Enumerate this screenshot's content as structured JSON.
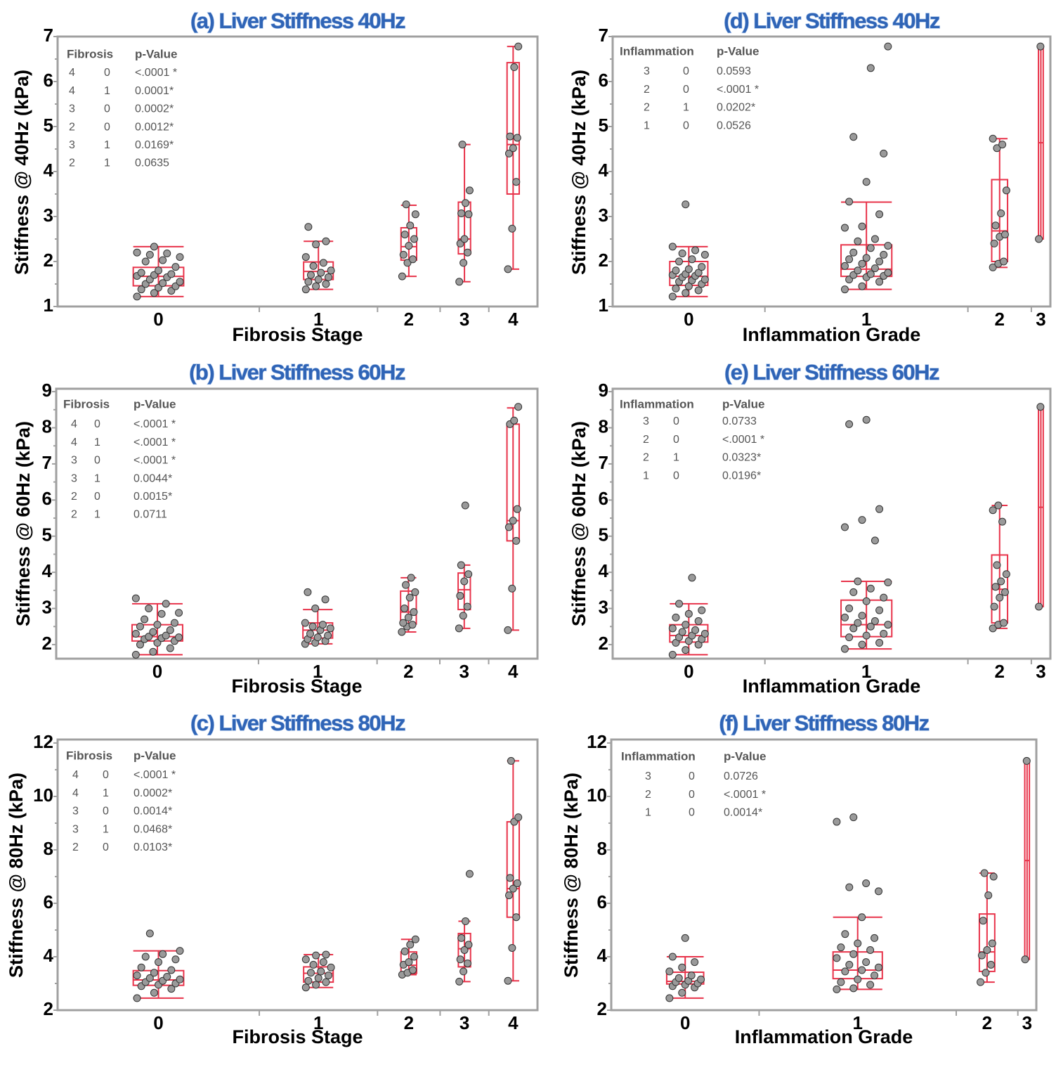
{
  "colors": {
    "box": "#e8334a",
    "point_fill": "#9a9a9a",
    "point_stroke": "#333333",
    "frame": "#a0a0a0",
    "title": "#2f64b6"
  },
  "chart_data": [
    {
      "type": "box",
      "title": "(a) Liver Stiffness 40Hz",
      "xlabel": "Fibrosis Stage",
      "ylabel": "Stiffness @ 40Hz (kPa)",
      "ylim": [
        1,
        7
      ],
      "yticks": [
        1,
        2,
        3,
        4,
        5,
        6,
        7
      ],
      "yminor": [
        1.5,
        2.5,
        3.5,
        4.5,
        5.5,
        6.5
      ],
      "table": {
        "headers": [
          "Fibrosis",
          "p-Value"
        ],
        "rows": [
          [
            "4",
            "0",
            "<.0001 *"
          ],
          [
            "4",
            "1",
            "0.0001*"
          ],
          [
            "3",
            "0",
            "0.0002*"
          ],
          [
            "2",
            "0",
            "0.0012*"
          ],
          [
            "3",
            "1",
            "0.0169*"
          ],
          [
            "2",
            "1",
            "0.0635"
          ]
        ]
      },
      "categories": [
        {
          "label": "0",
          "n": 29,
          "stats": [
            1.22,
            1.46,
            1.67,
            1.87,
            2.33
          ],
          "points": [
            1.22,
            1.3,
            1.35,
            1.38,
            1.42,
            1.45,
            1.5,
            1.52,
            1.55,
            1.6,
            1.65,
            1.68,
            1.7,
            1.72,
            1.75,
            1.8,
            1.88,
            2.0,
            2.03,
            2.1,
            2.15,
            2.18,
            2.2,
            2.33
          ]
        },
        {
          "label": "1",
          "n": 17,
          "stats": [
            1.38,
            1.6,
            1.78,
            1.99,
            2.45
          ],
          "points": [
            1.38,
            1.45,
            1.5,
            1.55,
            1.6,
            1.65,
            1.7,
            1.75,
            1.8,
            1.9,
            1.97,
            2.1,
            2.38,
            2.45,
            2.77
          ]
        },
        {
          "label": "2",
          "n": 9,
          "stats": [
            1.67,
            2.03,
            2.33,
            2.75,
            3.25
          ],
          "points": [
            1.67,
            1.97,
            2.05,
            2.15,
            2.35,
            2.5,
            2.6,
            2.8,
            3.05,
            3.27
          ]
        },
        {
          "label": "3",
          "n": 7,
          "stats": [
            1.55,
            2.17,
            2.5,
            3.32,
            4.6
          ],
          "points": [
            1.55,
            1.97,
            2.2,
            2.4,
            2.5,
            3.05,
            3.07,
            3.3,
            3.58,
            4.6
          ]
        },
        {
          "label": "4",
          "n": 7,
          "stats": [
            1.83,
            3.5,
            4.6,
            6.42,
            6.78
          ],
          "points": [
            1.83,
            2.73,
            3.77,
            4.4,
            4.52,
            4.75,
            4.78,
            6.32,
            6.78
          ]
        }
      ]
    },
    {
      "type": "box",
      "title": "(d) Liver Stiffness 40Hz",
      "xlabel": "Inflammation Grade",
      "ylabel": "Stiffness @ 40Hz (kPa)",
      "ylim": [
        1,
        7
      ],
      "yticks": [
        1,
        2,
        3,
        4,
        5,
        6,
        7
      ],
      "yminor": [
        1.5,
        2.5,
        3.5,
        4.5,
        5.5,
        6.5
      ],
      "table": {
        "headers": [
          "Inflammation",
          "p-Value"
        ],
        "rows": [
          [
            "3",
            "0",
            "0.0593"
          ],
          [
            "2",
            "0",
            "<.0001 *"
          ],
          [
            "2",
            "1",
            "0.0202*"
          ],
          [
            "1",
            "0",
            "0.0526"
          ]
        ]
      },
      "categories": [
        {
          "label": "0",
          "n": 24,
          "stats": [
            1.22,
            1.47,
            1.67,
            2.0,
            2.33
          ],
          "points": [
            1.22,
            1.3,
            1.36,
            1.4,
            1.45,
            1.5,
            1.55,
            1.58,
            1.6,
            1.65,
            1.68,
            1.7,
            1.72,
            1.75,
            1.8,
            1.83,
            1.88,
            2.0,
            2.05,
            2.15,
            2.18,
            2.25,
            2.33,
            3.27
          ]
        },
        {
          "label": "1",
          "n": 32,
          "stats": [
            1.38,
            1.67,
            1.83,
            2.37,
            3.32
          ],
          "points": [
            1.38,
            1.45,
            1.55,
            1.6,
            1.65,
            1.68,
            1.7,
            1.72,
            1.75,
            1.8,
            1.85,
            1.9,
            1.95,
            2.0,
            2.05,
            2.08,
            2.15,
            2.2,
            2.3,
            2.35,
            2.45,
            2.5,
            2.75,
            2.78,
            3.05,
            3.33,
            3.77,
            4.4,
            4.77,
            6.3,
            6.78
          ]
        },
        {
          "label": "2",
          "n": 10,
          "stats": [
            1.87,
            2.0,
            2.68,
            3.82,
            4.73
          ],
          "points": [
            1.87,
            1.95,
            2.0,
            2.4,
            2.55,
            2.6,
            2.8,
            3.07,
            3.58,
            4.52,
            4.6,
            4.73
          ]
        },
        {
          "label": "3",
          "n": 3,
          "stats": [
            2.5,
            2.5,
            4.64,
            6.78,
            6.78
          ],
          "points": [
            2.5,
            6.78
          ]
        }
      ]
    },
    {
      "type": "box",
      "title": "(b) Liver Stiffness 60Hz",
      "xlabel": "Fibrosis Stage",
      "ylabel": "Stiffness @ 60Hz (kPa)",
      "ylim": [
        1.61,
        9.08
      ],
      "yticks": [
        2,
        3,
        4,
        5,
        6,
        7,
        8,
        9
      ],
      "yminor": [
        2.5,
        3.5,
        4.5,
        5.5,
        6.5,
        7.5,
        8.5
      ],
      "table": {
        "headers": [
          "Fibrosis",
          "p-Value"
        ],
        "rows": [
          [
            "4",
            "0",
            "<.0001 *"
          ],
          [
            "4",
            "1",
            "<.0001 *"
          ],
          [
            "3",
            "0",
            "<.0001 *"
          ],
          [
            "3",
            "1",
            "0.0044*"
          ],
          [
            "2",
            "0",
            "0.0015*"
          ],
          [
            "2",
            "1",
            "0.0711"
          ]
        ]
      },
      "categories": [
        {
          "label": "0",
          "n": 29,
          "stats": [
            1.72,
            2.1,
            2.22,
            2.55,
            3.13
          ],
          "points": [
            1.72,
            1.8,
            1.9,
            2.0,
            2.05,
            2.1,
            2.15,
            2.18,
            2.2,
            2.22,
            2.25,
            2.3,
            2.35,
            2.4,
            2.5,
            2.55,
            2.6,
            2.7,
            2.85,
            2.88,
            3.0,
            3.13,
            3.28
          ]
        },
        {
          "label": "1",
          "n": 17,
          "stats": [
            2.02,
            2.18,
            2.4,
            2.6,
            2.97
          ],
          "points": [
            2.02,
            2.05,
            2.1,
            2.15,
            2.2,
            2.25,
            2.3,
            2.4,
            2.45,
            2.5,
            2.55,
            2.6,
            3.0,
            3.25,
            3.45
          ]
        },
        {
          "label": "2",
          "n": 9,
          "stats": [
            2.35,
            2.57,
            2.9,
            3.48,
            3.85
          ],
          "points": [
            2.35,
            2.5,
            2.55,
            2.6,
            2.75,
            2.9,
            3.0,
            3.3,
            3.45,
            3.65,
            3.85
          ]
        },
        {
          "label": "3",
          "n": 7,
          "stats": [
            2.45,
            2.97,
            3.52,
            3.98,
            4.2
          ],
          "points": [
            2.45,
            2.8,
            3.05,
            3.35,
            3.75,
            3.95,
            4.2,
            5.85
          ]
        },
        {
          "label": "4",
          "n": 7,
          "stats": [
            2.4,
            4.87,
            5.43,
            8.1,
            8.55
          ],
          "points": [
            2.4,
            3.55,
            4.87,
            5.25,
            5.43,
            5.75,
            8.1,
            8.2,
            8.58
          ]
        }
      ]
    },
    {
      "type": "box",
      "title": "(e) Liver Stiffness 60Hz",
      "xlabel": "Inflammation Grade",
      "ylabel": "Stiffness @ 60Hz (kPa)",
      "ylim": [
        1.61,
        9.08
      ],
      "yticks": [
        2,
        3,
        4,
        5,
        6,
        7,
        8,
        9
      ],
      "yminor": [
        2.5,
        3.5,
        4.5,
        5.5,
        6.5,
        7.5,
        8.5
      ],
      "table": {
        "headers": [
          "Inflammation",
          "p-Value"
        ],
        "rows": [
          [
            "3",
            "0",
            "0.0733"
          ],
          [
            "2",
            "0",
            "<.0001 *"
          ],
          [
            "2",
            "1",
            "0.0323*"
          ],
          [
            "1",
            "0",
            "0.0196*"
          ]
        ]
      },
      "categories": [
        {
          "label": "0",
          "n": 24,
          "stats": [
            1.72,
            2.07,
            2.25,
            2.55,
            3.13
          ],
          "points": [
            1.72,
            1.85,
            2.0,
            2.05,
            2.1,
            2.15,
            2.2,
            2.25,
            2.3,
            2.35,
            2.4,
            2.45,
            2.55,
            2.65,
            2.75,
            2.85,
            2.95,
            3.13,
            3.85
          ]
        },
        {
          "label": "1",
          "n": 32,
          "stats": [
            1.88,
            2.22,
            2.55,
            3.23,
            3.75
          ],
          "points": [
            1.88,
            2.0,
            2.05,
            2.2,
            2.25,
            2.3,
            2.45,
            2.5,
            2.55,
            2.6,
            2.65,
            2.75,
            2.8,
            2.95,
            3.0,
            3.2,
            3.3,
            3.45,
            3.55,
            3.72,
            3.75,
            4.88,
            5.25,
            5.45,
            5.75,
            8.1,
            8.22
          ]
        },
        {
          "label": "2",
          "n": 10,
          "stats": [
            2.45,
            2.6,
            3.53,
            4.48,
            5.85
          ],
          "points": [
            2.45,
            2.55,
            2.6,
            3.05,
            3.3,
            3.45,
            3.6,
            3.75,
            3.95,
            4.2,
            5.4,
            5.72,
            5.85
          ]
        },
        {
          "label": "3",
          "n": 3,
          "stats": [
            3.05,
            3.05,
            5.8,
            8.58,
            8.58
          ],
          "points": [
            3.05,
            8.58
          ]
        }
      ]
    },
    {
      "type": "box",
      "title": "(c) Liver Stiffness 80Hz",
      "xlabel": "Fibrosis Stage",
      "ylabel": "Stiffness @ 80Hz (kPa)",
      "ylim": [
        2,
        12.13
      ],
      "yticks": [
        2,
        4,
        6,
        8,
        10,
        12
      ],
      "yminor": [
        3,
        5,
        7,
        9,
        11
      ],
      "table": {
        "headers": [
          "Fibrosis",
          "p-Value"
        ],
        "rows": [
          [
            "4",
            "0",
            "<.0001 *"
          ],
          [
            "4",
            "1",
            "0.0002*"
          ],
          [
            "3",
            "0",
            "0.0014*"
          ],
          [
            "3",
            "1",
            "0.0468*"
          ],
          [
            "2",
            "0",
            "0.0103*"
          ]
        ]
      },
      "categories": [
        {
          "label": "0",
          "n": 29,
          "stats": [
            2.45,
            2.93,
            3.13,
            3.48,
            4.22
          ],
          "points": [
            2.45,
            2.65,
            2.8,
            2.9,
            2.95,
            3.0,
            3.05,
            3.1,
            3.15,
            3.2,
            3.25,
            3.3,
            3.4,
            3.5,
            3.6,
            3.8,
            3.9,
            4.0,
            4.1,
            4.22,
            4.87
          ]
        },
        {
          "label": "1",
          "n": 17,
          "stats": [
            2.85,
            3.05,
            3.38,
            3.62,
            4.08
          ],
          "points": [
            2.85,
            2.95,
            3.05,
            3.1,
            3.2,
            3.3,
            3.4,
            3.45,
            3.6,
            3.7,
            3.8,
            3.9,
            4.05,
            4.08
          ]
        },
        {
          "label": "2",
          "n": 9,
          "stats": [
            3.33,
            3.38,
            3.68,
            4.18,
            4.65
          ],
          "points": [
            3.33,
            3.4,
            3.5,
            3.7,
            3.8,
            4.0,
            4.2,
            4.45,
            4.65
          ]
        },
        {
          "label": "3",
          "n": 7,
          "stats": [
            3.07,
            3.62,
            4.3,
            4.87,
            5.33
          ],
          "points": [
            3.07,
            3.45,
            3.75,
            3.9,
            4.25,
            4.45,
            4.7,
            5.33,
            7.1
          ]
        },
        {
          "label": "4",
          "n": 7,
          "stats": [
            3.1,
            5.48,
            6.55,
            9.05,
            11.33
          ],
          "points": [
            3.1,
            4.33,
            5.48,
            6.3,
            6.55,
            6.75,
            6.95,
            9.05,
            9.22,
            11.33
          ]
        }
      ]
    },
    {
      "type": "box",
      "title": "(f) Liver Stiffness 80Hz",
      "xlabel": "Inflammation Grade",
      "ylabel": "Stiffness @ 80Hz (kPa)",
      "ylim": [
        2,
        12.13
      ],
      "yticks": [
        2,
        4,
        6,
        8,
        10,
        12
      ],
      "yminor": [
        3,
        5,
        7,
        9,
        11
      ],
      "table": {
        "headers": [
          "Inflammation",
          "p-Value"
        ],
        "rows": [
          [
            "3",
            "0",
            "0.0726"
          ],
          [
            "2",
            "0",
            "<.0001 *"
          ],
          [
            "1",
            "0",
            "0.0014*"
          ]
        ]
      },
      "categories": [
        {
          "label": "0",
          "n": 24,
          "stats": [
            2.45,
            2.98,
            3.08,
            3.42,
            4.0
          ],
          "points": [
            2.45,
            2.65,
            2.85,
            2.9,
            2.95,
            3.0,
            3.05,
            3.1,
            3.15,
            3.2,
            3.3,
            3.45,
            3.6,
            3.8,
            4.0,
            4.7
          ]
        },
        {
          "label": "1",
          "n": 32,
          "stats": [
            2.78,
            3.18,
            3.5,
            4.18,
            5.48
          ],
          "points": [
            2.78,
            2.82,
            2.95,
            3.05,
            3.15,
            3.3,
            3.45,
            3.5,
            3.6,
            3.7,
            3.8,
            3.95,
            4.1,
            4.25,
            4.35,
            4.5,
            4.7,
            4.85,
            5.48,
            6.45,
            6.6,
            6.75,
            9.05,
            9.22
          ]
        },
        {
          "label": "2",
          "n": 10,
          "stats": [
            3.05,
            3.45,
            4.18,
            5.6,
            7.13
          ],
          "points": [
            3.05,
            3.4,
            3.7,
            4.05,
            4.25,
            4.5,
            5.35,
            6.3,
            7.0,
            7.13
          ]
        },
        {
          "label": "3",
          "n": 3,
          "stats": [
            3.9,
            3.9,
            7.6,
            11.33,
            11.33
          ],
          "points": [
            3.9,
            11.33
          ]
        }
      ]
    }
  ]
}
